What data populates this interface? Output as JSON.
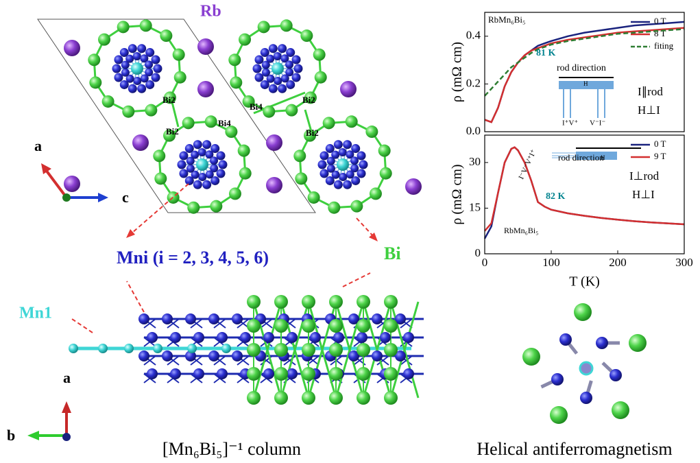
{
  "structure": {
    "top": {
      "rb": "Rb",
      "bi_sites": [
        "Bi2",
        "Bi4",
        "Bi2",
        "Bi4",
        "Bi2",
        "Bi2"
      ],
      "axis_a": "a",
      "axis_c": "c"
    },
    "column": {
      "mni": "Mni (i = 2, 3, 4, 5, 6)",
      "bi": "Bi",
      "mn1": "Mn1",
      "axis_a": "a",
      "axis_b": "b"
    },
    "captions": [
      "[Mn₆Bi₅]⁻¹ column",
      "Helical antiferromagnetism"
    ]
  },
  "chart_data": [
    {
      "type": "line",
      "ylabel": "ρ (mΩ cm)",
      "legend": "upper right",
      "x": [
        0,
        10,
        20,
        30,
        40,
        50,
        60,
        70,
        80,
        90,
        100,
        125,
        150,
        175,
        200,
        225,
        250,
        275,
        300
      ],
      "xlim": [
        0,
        300
      ],
      "ylim": [
        0,
        0.5
      ],
      "yticks": [
        {
          "value": 0,
          "label": "0.0"
        },
        0.2,
        0.4
      ],
      "series": [
        {
          "name": "0 T",
          "color": "#1a237e",
          "style": "solid",
          "values": [
            0.05,
            0.04,
            0.1,
            0.19,
            0.25,
            0.29,
            0.32,
            0.34,
            0.36,
            0.37,
            0.38,
            0.4,
            0.415,
            0.425,
            0.435,
            0.445,
            0.45,
            0.455,
            0.46
          ]
        },
        {
          "name": "8 T",
          "color": "#d32f2f",
          "style": "solid",
          "values": [
            0.05,
            0.04,
            0.1,
            0.19,
            0.25,
            0.29,
            0.32,
            0.34,
            0.35,
            0.36,
            0.37,
            0.385,
            0.395,
            0.405,
            0.415,
            0.42,
            0.425,
            0.43,
            0.435
          ]
        },
        {
          "name": "fiting",
          "color": "#2e7d32",
          "style": "dashed",
          "values": [
            0.15,
            0.18,
            0.21,
            0.24,
            0.27,
            0.29,
            0.31,
            0.33,
            0.345,
            0.355,
            0.365,
            0.38,
            0.39,
            0.4,
            0.41,
            0.415,
            0.42,
            0.425,
            0.43
          ]
        }
      ],
      "annotations": [
        "RbMn₆Bi₅",
        "81 K",
        "rod direction",
        "H",
        "I⁺V⁺",
        "V⁻I⁻",
        "I∥rod",
        "H⊥I"
      ]
    },
    {
      "type": "line",
      "ylabel": "ρ (mΩ cm)",
      "xlabel": "T (K)",
      "legend": "upper right",
      "x": [
        0,
        10,
        20,
        30,
        40,
        45,
        50,
        60,
        70,
        80,
        90,
        100,
        125,
        150,
        175,
        200,
        225,
        250,
        275,
        300
      ],
      "xlim": [
        0,
        300
      ],
      "xticks": [
        0,
        100,
        200,
        300
      ],
      "ylim": [
        0,
        39
      ],
      "yticks": [
        0,
        15,
        30
      ],
      "series": [
        {
          "name": "0 T",
          "color": "#1a237e",
          "style": "solid",
          "values": [
            5,
            9,
            20,
            30,
            34.5,
            35,
            34,
            30,
            24,
            17,
            15.5,
            14.5,
            13.3,
            12.5,
            11.8,
            11.2,
            10.7,
            10.3,
            10,
            9.7
          ]
        },
        {
          "name": "9 T",
          "color": "#d32f2f",
          "style": "solid",
          "values": [
            7.5,
            10,
            20,
            30,
            34.5,
            35,
            34,
            30,
            24,
            17,
            15.5,
            14.5,
            13.3,
            12.5,
            11.8,
            11.2,
            10.7,
            10.3,
            10,
            9.7
          ]
        }
      ],
      "annotations": [
        "RbMn₆Bi₅",
        "82 K",
        "rod direction",
        "H",
        "I⁻V⁻V⁺I⁺",
        "I⊥rod",
        "H⊥I"
      ]
    }
  ]
}
